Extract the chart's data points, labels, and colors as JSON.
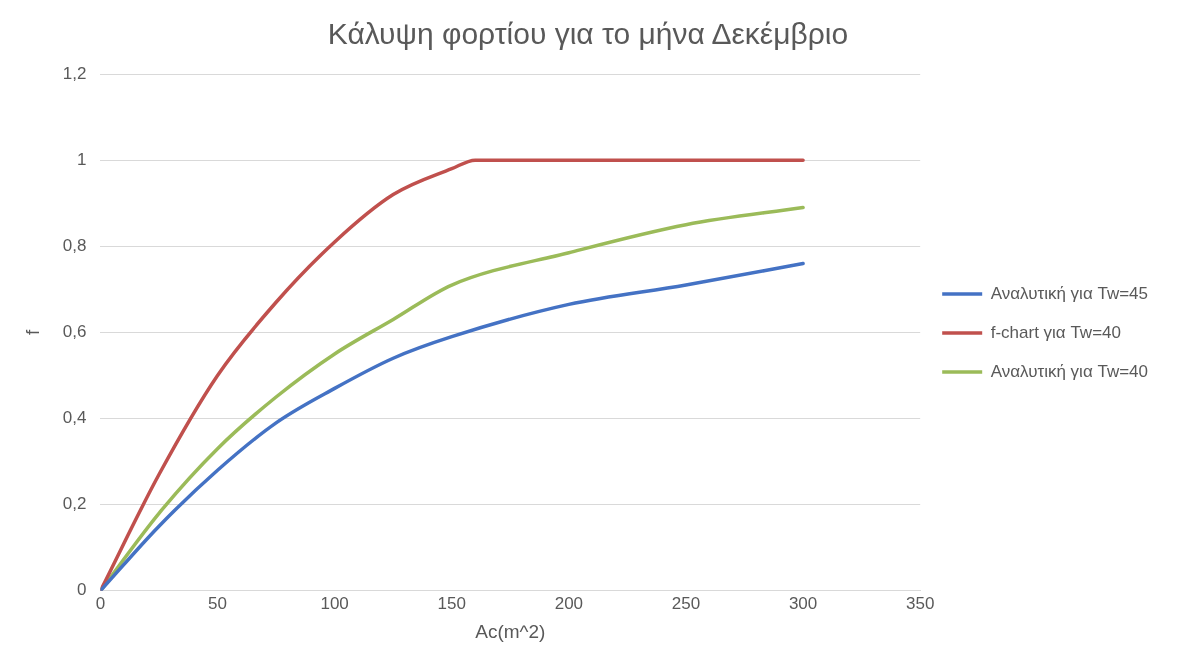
{
  "chart_data": {
    "type": "line",
    "title": "Κάλυψη φορτίου για το μήνα Δεκέμβριο",
    "xlabel": "Ac(m^2)",
    "ylabel": "f",
    "xlim": [
      0,
      350
    ],
    "xticks": [
      0,
      50,
      100,
      150,
      200,
      250,
      300,
      350
    ],
    "ylim": [
      0,
      1.2
    ],
    "yticks": [
      0,
      {
        "value": 0.2,
        "label": "0,2"
      },
      {
        "value": 0.4,
        "label": "0,4"
      },
      {
        "value": 0.6,
        "label": "0,6"
      },
      {
        "value": 0.8,
        "label": "0,8"
      },
      1,
      {
        "value": 1.2,
        "label": "1,2"
      }
    ],
    "grid": "y",
    "legend": "right",
    "marker": "none",
    "line_style": "solid",
    "series": [
      {
        "name": "Αναλυτική για Tw=45",
        "color": "#4472c4",
        "x": [
          0,
          25,
          50,
          75,
          100,
          125,
          150,
          200,
          250,
          300
        ],
        "values": [
          0,
          0.15,
          0.28,
          0.39,
          0.47,
          0.54,
          0.59,
          0.665,
          0.71,
          0.76
        ]
      },
      {
        "name": "f-chart για Tw=40",
        "color": "#c0504d",
        "x": [
          0,
          25,
          50,
          75,
          100,
          125,
          150,
          160,
          200,
          250,
          300
        ],
        "values": [
          0,
          0.27,
          0.5,
          0.67,
          0.81,
          0.92,
          0.98,
          1,
          1,
          1,
          1
        ]
      },
      {
        "name": "Αναλυτική για Tw=40",
        "color": "#9bbb59",
        "x": [
          0,
          25,
          50,
          75,
          100,
          125,
          150,
          200,
          250,
          300
        ],
        "values": [
          0,
          0.18,
          0.33,
          0.45,
          0.55,
          0.63,
          0.71,
          0.785,
          0.85,
          0.89
        ]
      }
    ]
  }
}
